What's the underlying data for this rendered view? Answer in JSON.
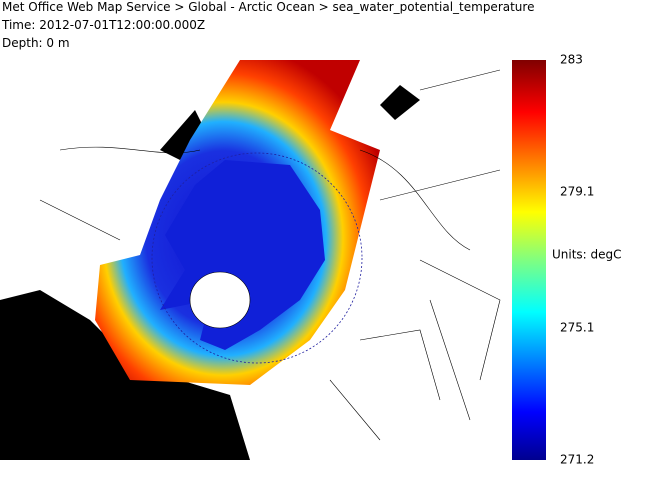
{
  "header": {
    "title": "Met Office Web Map Service > Global - Arctic Ocean > sea_water_potential_temperature",
    "time": "Time: 2012-07-01T12:00:00.000Z",
    "depth": "Depth: 0 m"
  },
  "legend": {
    "ticks": [
      283,
      279.1,
      275.1,
      271.2
    ],
    "units": "Units: degC"
  }
}
